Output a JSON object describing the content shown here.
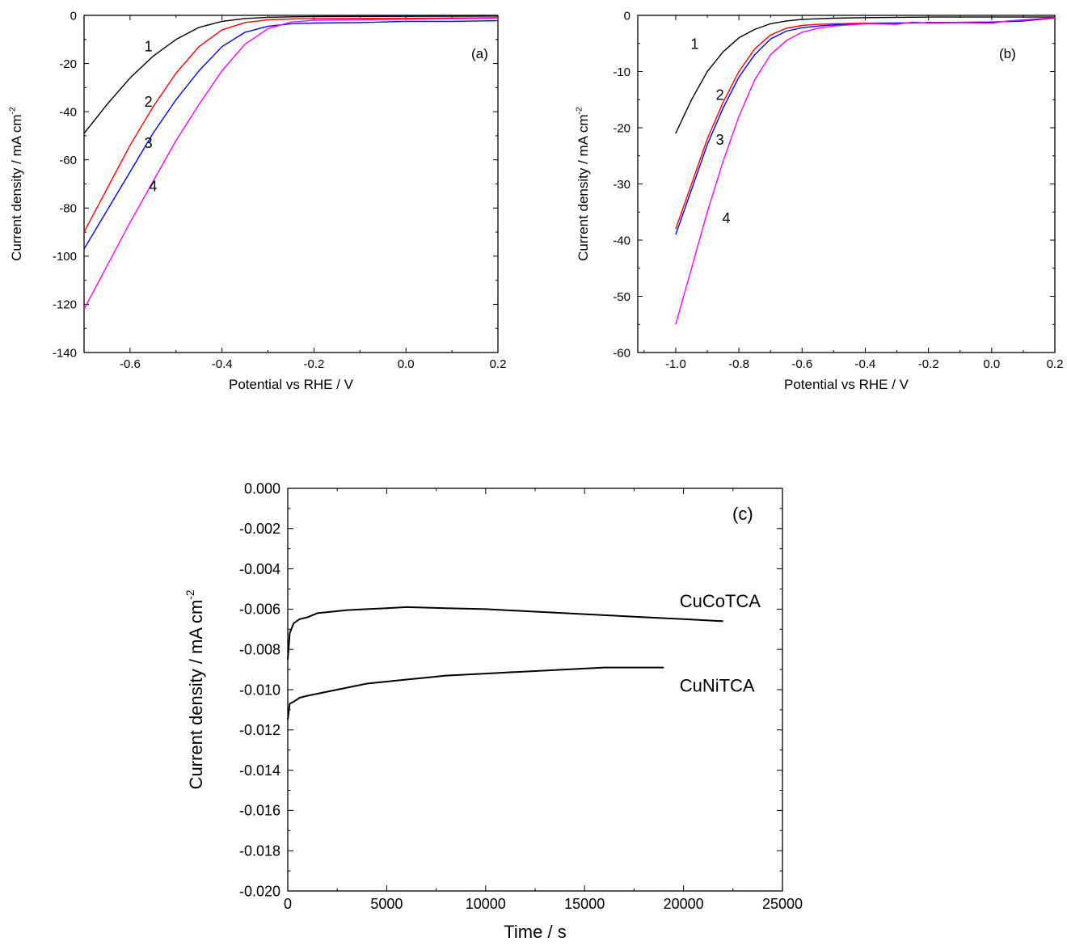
{
  "chart_data": [
    {
      "type": "line",
      "panel_label": "(a)",
      "xlabel": "Potential vs  RHE / V",
      "ylabel": "Current density / mA cm",
      "ylabel_sup": "-2",
      "xlim": [
        -0.7,
        0.2
      ],
      "ylim": [
        -140,
        0
      ],
      "xticks": [
        -0.6,
        -0.4,
        -0.2,
        0.0,
        0.2
      ],
      "xtick_labels": [
        "-0.6",
        "-0.4",
        "-0.2",
        "0.0",
        "0.2"
      ],
      "yticks": [
        0,
        -20,
        -40,
        -60,
        -80,
        -100,
        -120,
        -140
      ],
      "ytick_labels": [
        "0",
        "-20",
        "-40",
        "-60",
        "-80",
        "-100",
        "-120",
        "-140"
      ],
      "grid": false,
      "series": [
        {
          "label": "1",
          "color": "#000000",
          "label_pos": [
            -0.56,
            -15
          ],
          "x": [
            -0.7,
            -0.65,
            -0.6,
            -0.55,
            -0.5,
            -0.45,
            -0.4,
            -0.35,
            -0.3,
            -0.25,
            -0.2,
            0.0,
            0.2
          ],
          "y": [
            -49,
            -37,
            -26,
            -17,
            -10,
            -5,
            -2.5,
            -1.3,
            -0.8,
            -0.6,
            -0.5,
            -0.4,
            -0.3
          ]
        },
        {
          "label": "2",
          "color": "#ff0000",
          "label_pos": [
            -0.56,
            -38
          ],
          "x": [
            -0.7,
            -0.65,
            -0.6,
            -0.55,
            -0.5,
            -0.45,
            -0.4,
            -0.35,
            -0.3,
            -0.25,
            -0.2,
            0.0,
            0.2
          ],
          "y": [
            -90,
            -72,
            -54,
            -38,
            -24,
            -13,
            -6,
            -3,
            -1.8,
            -1.5,
            -1.3,
            -1.2,
            -1.0
          ]
        },
        {
          "label": "3",
          "color": "#0000ff",
          "label_pos": [
            -0.56,
            -55
          ],
          "x": [
            -0.7,
            -0.65,
            -0.6,
            -0.55,
            -0.5,
            -0.45,
            -0.4,
            -0.35,
            -0.3,
            -0.25,
            -0.2,
            -0.1,
            0.0,
            0.1,
            0.2
          ],
          "y": [
            -97,
            -81,
            -65,
            -49,
            -35,
            -23,
            -13,
            -7,
            -4.5,
            -3.5,
            -3.2,
            -3.0,
            -2.5,
            -2.5,
            -2.2
          ]
        },
        {
          "label": "4",
          "color": "#ff00ff",
          "label_pos": [
            -0.55,
            -73
          ],
          "x": [
            -0.7,
            -0.65,
            -0.6,
            -0.55,
            -0.5,
            -0.45,
            -0.4,
            -0.35,
            -0.3,
            -0.25,
            -0.2,
            0.0,
            0.2
          ],
          "y": [
            -122,
            -104,
            -86,
            -69,
            -52,
            -37,
            -23,
            -12,
            -5.5,
            -2.8,
            -2,
            -1.6,
            -1.2
          ]
        }
      ]
    },
    {
      "type": "line",
      "panel_label": "(b)",
      "xlabel": "Potential vs RHE / V",
      "ylabel": "Current density / mA cm",
      "ylabel_sup": "-2",
      "xlim": [
        -1.12,
        0.2
      ],
      "ylim": [
        -60,
        0
      ],
      "xticks": [
        -1.0,
        -0.8,
        -0.6,
        -0.4,
        -0.2,
        0.0,
        0.2
      ],
      "xtick_labels": [
        "-1.0",
        "-0.8",
        "-0.6",
        "-0.4",
        "-0.2",
        "0.0",
        "0.2"
      ],
      "yticks": [
        0,
        -10,
        -20,
        -30,
        -40,
        -50,
        -60
      ],
      "ytick_labels": [
        "0",
        "-10",
        "-20",
        "-30",
        "-40",
        "-50",
        "-60"
      ],
      "grid": false,
      "series": [
        {
          "label": "1",
          "color": "#000000",
          "label_pos": [
            -0.94,
            -6
          ],
          "x": [
            -1.0,
            -0.95,
            -0.9,
            -0.85,
            -0.8,
            -0.75,
            -0.7,
            -0.65,
            -0.6,
            -0.5,
            -0.4,
            -0.2,
            0.0,
            0.2
          ],
          "y": [
            -21,
            -15,
            -10,
            -6.5,
            -4,
            -2.5,
            -1.5,
            -1,
            -0.7,
            -0.5,
            -0.4,
            -0.3,
            -0.3,
            -0.3
          ]
        },
        {
          "label": "2",
          "color": "#ff0000",
          "label_pos": [
            -0.86,
            -15
          ],
          "x": [
            -1.0,
            -0.95,
            -0.9,
            -0.85,
            -0.8,
            -0.75,
            -0.7,
            -0.65,
            -0.6,
            -0.55,
            -0.5,
            -0.4,
            -0.2,
            0.0,
            0.1,
            0.2
          ],
          "y": [
            -38,
            -30,
            -22,
            -15.5,
            -10,
            -6,
            -3.5,
            -2.3,
            -1.8,
            -1.6,
            -1.5,
            -1.4,
            -1.3,
            -1.2,
            -1.0,
            -0.5
          ]
        },
        {
          "label": "3",
          "color": "#0000ff",
          "label_pos": [
            -0.86,
            -23
          ],
          "x": [
            -1.0,
            -0.95,
            -0.9,
            -0.85,
            -0.8,
            -0.75,
            -0.7,
            -0.65,
            -0.6,
            -0.55,
            -0.5,
            -0.4,
            -0.3,
            -0.2,
            0.0,
            0.1,
            0.2
          ],
          "y": [
            -39,
            -31,
            -23,
            -16.5,
            -11,
            -7,
            -4.2,
            -2.8,
            -2.2,
            -1.9,
            -1.7,
            -1.5,
            -1.4,
            -1.3,
            -1.2,
            -1.0,
            -0.4
          ]
        },
        {
          "label": "4",
          "color": "#ff00ff",
          "label_pos": [
            -0.84,
            -37
          ],
          "x": [
            -1.0,
            -0.95,
            -0.9,
            -0.85,
            -0.8,
            -0.75,
            -0.7,
            -0.65,
            -0.6,
            -0.55,
            -0.5,
            -0.45,
            -0.4,
            -0.3,
            -0.25,
            -0.2,
            -0.1,
            0.0,
            0.05,
            0.1,
            0.2
          ],
          "y": [
            -55,
            -45,
            -35,
            -26,
            -18,
            -11.5,
            -7,
            -4.5,
            -3,
            -2.3,
            -1.9,
            -1.7,
            -1.5,
            -1.6,
            -1.2,
            -1.4,
            -1.3,
            -1.4,
            -1.0,
            -0.8,
            -0.4
          ]
        }
      ]
    },
    {
      "type": "line",
      "panel_label": "(c)",
      "xlabel": "Time /  s",
      "ylabel": "Current density / mA cm",
      "ylabel_sup": "-2",
      "xlim": [
        0,
        25000
      ],
      "ylim": [
        -0.02,
        0.0
      ],
      "xticks": [
        0,
        5000,
        10000,
        15000,
        20000,
        25000
      ],
      "xtick_labels": [
        "0",
        "5000",
        "10000",
        "15000",
        "20000",
        "25000"
      ],
      "yticks": [
        0.0,
        -0.002,
        -0.004,
        -0.006,
        -0.008,
        -0.01,
        -0.012,
        -0.014,
        -0.016,
        -0.018,
        -0.02
      ],
      "ytick_labels": [
        "0.000",
        "-0.002",
        "-0.004",
        "-0.006",
        "-0.008",
        "-0.010",
        "-0.012",
        "-0.014",
        "-0.016",
        "-0.018",
        "-0.020"
      ],
      "grid": false,
      "series": [
        {
          "label": "CuCoTCA",
          "color": "#000000",
          "label_pos": [
            19800,
            -0.0059
          ],
          "x": [
            0,
            100,
            300,
            600,
            1000,
            1500,
            2000,
            3000,
            4000,
            5000,
            6000,
            8000,
            10000,
            12000,
            14000,
            16000,
            18000,
            20000,
            22000
          ],
          "y": [
            -0.0085,
            -0.0072,
            -0.0067,
            -0.0065,
            -0.0064,
            -0.0062,
            -0.00615,
            -0.00605,
            -0.006,
            -0.00595,
            -0.0059,
            -0.00595,
            -0.006,
            -0.0061,
            -0.0062,
            -0.0063,
            -0.0064,
            -0.0065,
            -0.0066
          ]
        },
        {
          "label": "CuNiTCA",
          "color": "#000000",
          "label_pos": [
            19800,
            -0.0101
          ],
          "x": [
            0,
            100,
            300,
            600,
            1000,
            1500,
            2000,
            3000,
            4000,
            5000,
            6000,
            7000,
            8000,
            10000,
            12000,
            14000,
            16000,
            18000,
            19000
          ],
          "y": [
            -0.0115,
            -0.0107,
            -0.0106,
            -0.0104,
            -0.0103,
            -0.0102,
            -0.0101,
            -0.0099,
            -0.0097,
            -0.0096,
            -0.0095,
            -0.0094,
            -0.0093,
            -0.0092,
            -0.0091,
            -0.009,
            -0.0089,
            -0.0089,
            -0.0089
          ]
        }
      ]
    }
  ]
}
